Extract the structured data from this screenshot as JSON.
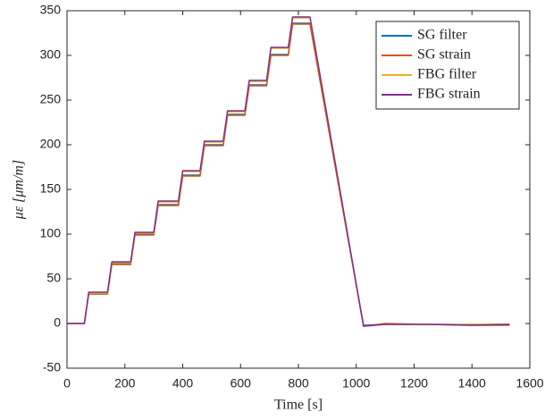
{
  "chart_data": {
    "type": "line",
    "xlabel": "Time [s]",
    "ylabel": "με [μm/m]",
    "x": [
      0,
      60,
      75,
      140,
      155,
      220,
      235,
      300,
      315,
      385,
      400,
      460,
      475,
      540,
      555,
      615,
      630,
      690,
      705,
      765,
      780,
      840,
      1025,
      1100,
      1250,
      1400,
      1530
    ],
    "series": [
      {
        "name": "SG filter",
        "color": "#0072BD",
        "values": [
          0,
          0,
          33,
          33,
          67,
          67,
          100,
          100,
          133,
          133,
          166,
          166,
          200,
          200,
          234,
          234,
          267,
          267,
          301,
          301,
          336,
          336,
          -2,
          -1,
          -1,
          -1,
          -1
        ]
      },
      {
        "name": "SG strain",
        "color": "#D95319",
        "values": [
          0,
          0,
          33,
          33,
          66,
          66,
          99,
          99,
          132,
          132,
          165,
          165,
          199,
          199,
          233,
          233,
          266,
          266,
          300,
          300,
          335,
          335,
          -3,
          0,
          -1,
          -2,
          -2
        ]
      },
      {
        "name": "FBG filter",
        "color": "#EDB120",
        "values": [
          0,
          0,
          34,
          34,
          68,
          68,
          101,
          101,
          136,
          136,
          170,
          170,
          203,
          203,
          237,
          237,
          271,
          271,
          308,
          308,
          342,
          342,
          -3,
          -1,
          -1,
          -1,
          -1
        ]
      },
      {
        "name": "FBG strain",
        "color": "#7E2F8E",
        "values": [
          0,
          0,
          35,
          35,
          69,
          69,
          102,
          102,
          137,
          137,
          171,
          171,
          204,
          204,
          238,
          238,
          272,
          272,
          309,
          309,
          343,
          343,
          -3,
          -1,
          -1,
          -2,
          -1
        ]
      }
    ],
    "xlim": [
      0,
      1600
    ],
    "xticks": [
      0,
      200,
      400,
      600,
      800,
      1000,
      1200,
      1400,
      1600
    ],
    "ylim": [
      -50,
      350
    ],
    "yticks": [
      -50,
      0,
      50,
      100,
      150,
      200,
      250,
      300,
      350
    ],
    "grid": false,
    "legend": "northeast"
  }
}
